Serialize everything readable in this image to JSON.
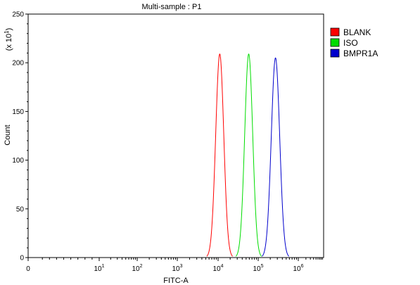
{
  "chart_data": {
    "type": "line",
    "title": "Multi-sample : P1",
    "xlabel": "FITC-A",
    "ylabel": "Count",
    "y_multiplier": "(x 10",
    "y_multiplier_exp": "1",
    "y_multiplier_close": ")",
    "x_scale": "biexponential-log",
    "xlim": [
      0,
      10000000
    ],
    "ylim": [
      0,
      250
    ],
    "y_ticks": [
      "0",
      "50",
      "100",
      "150",
      "200",
      "250"
    ],
    "x_tick_labels": [
      {
        "base": "0",
        "exp": "",
        "value": 0
      },
      {
        "base": "10",
        "exp": "1",
        "value": 10
      },
      {
        "base": "10",
        "exp": "2",
        "value": 100
      },
      {
        "base": "10",
        "exp": "3",
        "value": 1000
      },
      {
        "base": "10",
        "exp": "4",
        "value": 10000
      },
      {
        "base": "10",
        "exp": "5",
        "value": 100000
      },
      {
        "base": "10",
        "exp": "6",
        "value": 1000000
      }
    ],
    "grid": false,
    "legend_position": "top-right",
    "series": [
      {
        "name": "BLANK",
        "color": "#ff0000",
        "peak_x": 11000,
        "peak_y": 209,
        "sigma_log": 0.1
      },
      {
        "name": "ISO",
        "color": "#00dd00",
        "peak_x": 58000,
        "peak_y": 209,
        "sigma_log": 0.1
      },
      {
        "name": "BMPR1A",
        "color": "#0000cc",
        "peak_x": 270000,
        "peak_y": 205,
        "sigma_log": 0.105
      }
    ]
  }
}
